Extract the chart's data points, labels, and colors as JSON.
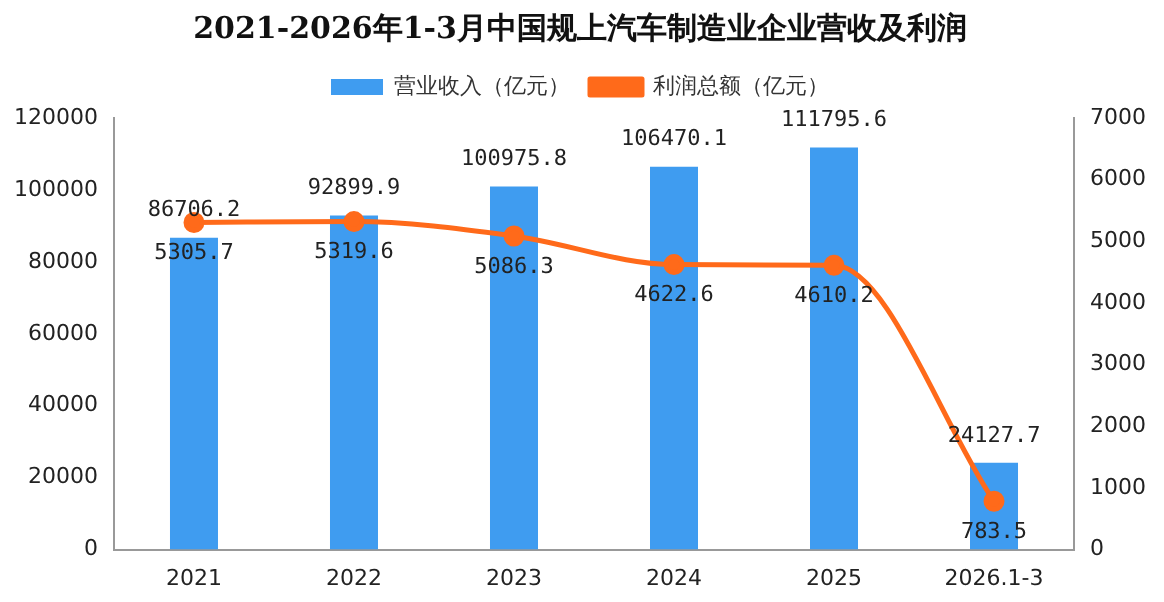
{
  "chart_data": {
    "type": "bar",
    "title": "2021-2026年1-3月中国规上汽车制造业企业营收及利润",
    "categories": [
      "2021",
      "2022",
      "2023",
      "2024",
      "2025",
      "2026.1-3"
    ],
    "series": [
      {
        "name": "营业收入（亿元）",
        "color": "#3f9cf0",
        "values": [
          86706.2,
          92899.9,
          100975.8,
          106470.1,
          111795.6,
          24127.7
        ]
      },
      {
        "name": "利润总额（亿元）",
        "type": "line",
        "axis": "y2",
        "color": "#ff6a1a",
        "marker": "circle",
        "values": [
          5305.7,
          5319.6,
          5086.3,
          4622.6,
          4610.2,
          783.5
        ]
      }
    ],
    "ylim": [
      0,
      120000
    ],
    "yticks": [
      0,
      20000,
      40000,
      60000,
      80000,
      100000,
      120000
    ],
    "y2lim": [
      0,
      7000
    ],
    "y2ticks": [
      0,
      1000,
      2000,
      3000,
      4000,
      5000,
      6000,
      7000
    ],
    "data_labels": true,
    "legend": "top",
    "grid": false
  }
}
